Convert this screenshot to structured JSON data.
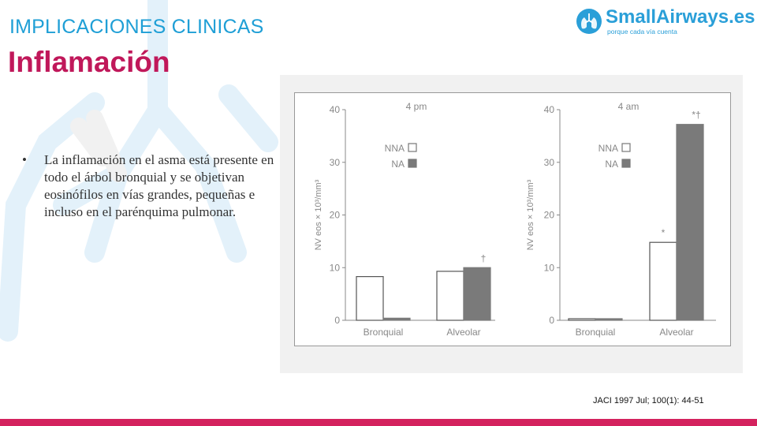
{
  "header": {
    "section_title": "IMPLICACIONES CLINICAS",
    "slide_title": "Inflamación"
  },
  "logo": {
    "name": "SmallAirways.es",
    "tagline": "porque cada vía cuenta",
    "icon": "lungs-icon"
  },
  "bullet": {
    "marker": "•",
    "text": "La inflamación en el asma está presente en todo el árbol bronquial y se objetivan eosinófilos en vías grandes, pequeñas e incluso en el parénquima pulmonar."
  },
  "citation": "JACI 1997 Jul; 100(1): 44-51",
  "colors": {
    "accent_blue": "#1f9fd6",
    "title_magenta": "#c0185a",
    "footer": "#d4225e",
    "bar_nna": "#ffffff",
    "bar_na": "#7a7a7a"
  },
  "chart_data": [
    {
      "type": "bar",
      "title": "4 pm",
      "ylabel": "NV eos × 10³/mm³",
      "ylim": [
        0,
        40
      ],
      "yticks": [
        "0",
        "10",
        "20",
        "30",
        "40"
      ],
      "categories": [
        "Bronquial",
        "Alveolar"
      ],
      "series": [
        {
          "name": "NNA",
          "values": [
            8.3,
            9.3
          ]
        },
        {
          "name": "NA",
          "values": [
            0.4,
            10.0
          ]
        }
      ],
      "annotations": [
        {
          "category": "Alveolar",
          "series": "NA",
          "text": "†"
        }
      ],
      "legend_position": "top-center"
    },
    {
      "type": "bar",
      "title": "4 am",
      "ylabel": "NV eos × 10³/mm³",
      "ylim": [
        0,
        40
      ],
      "yticks": [
        "0",
        "10",
        "20",
        "30",
        "40"
      ],
      "categories": [
        "Bronquial",
        "Alveolar"
      ],
      "series": [
        {
          "name": "NNA",
          "values": [
            0.3,
            14.8
          ]
        },
        {
          "name": "NA",
          "values": [
            0.3,
            37.2
          ]
        }
      ],
      "annotations": [
        {
          "category": "Alveolar",
          "series": "NNA",
          "text": "*"
        },
        {
          "category": "Alveolar",
          "series": "NA",
          "text": "*†"
        }
      ],
      "legend_position": "top-center"
    }
  ]
}
